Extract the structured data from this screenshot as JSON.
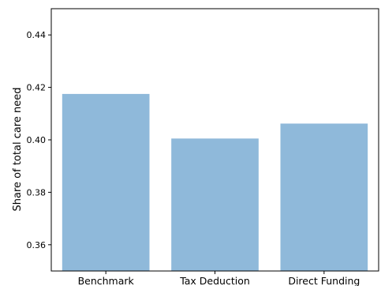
{
  "chart_data": {
    "type": "bar",
    "categories": [
      "Benchmark",
      "Tax Deduction",
      "Direct Funding"
    ],
    "values": [
      0.4175,
      0.4005,
      0.4062
    ],
    "title": "",
    "xlabel": "",
    "ylabel": "Share of total care need",
    "ylim": [
      0.35,
      0.45
    ],
    "yticks": [
      0.36,
      0.38,
      0.4,
      0.42,
      0.44
    ],
    "ytick_labels": [
      "0.36",
      "0.38",
      "0.40",
      "0.42",
      "0.44"
    ],
    "grid": false,
    "bar_color": "#8fb9da"
  }
}
